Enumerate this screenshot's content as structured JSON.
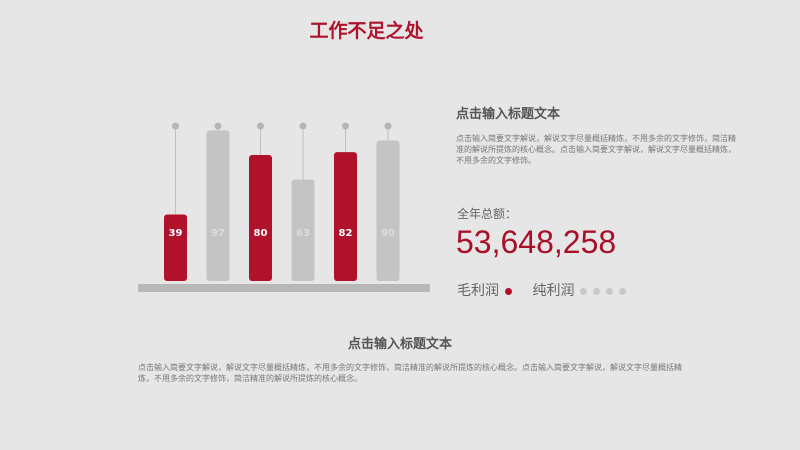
{
  "title": "工作不足之处",
  "chart_data": {
    "type": "bar",
    "values": [
      39,
      97,
      80,
      63,
      82,
      90
    ],
    "colors": [
      "#b0122c",
      "#c4c4c4",
      "#b0122c",
      "#c4c4c4",
      "#b0122c",
      "#c4c4c4"
    ]
  },
  "right": {
    "heading": "点击输入标题文本",
    "body": "点击输入简要文字解说，解说文字尽量概括精炼，不用多余的文字修饰，简洁精准的解说所提炼的核心概念。点击输入简要文字解说，解说文字尽量概括精炼，不用多余的文字修饰。",
    "total_label": "全年总额：",
    "total_value": "53,648,258",
    "tab1": "毛利润",
    "tab2": "纯利润",
    "accent": "#b0122c"
  },
  "bottom": {
    "heading": "点击输入标题文本",
    "body": "点击输入简要文字解说，解说文字尽量概括精炼，不用多余的文字修饰，简洁精准的解说所提炼的核心概念。点击输入简要文字解说，解说文字尽量概括精炼，不用多余的文字修饰，简洁精准的解说所提炼的核心概念。"
  }
}
